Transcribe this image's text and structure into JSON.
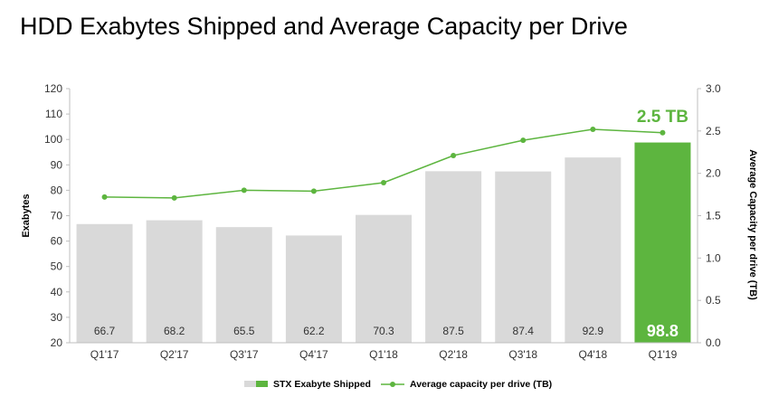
{
  "title": "HDD Exabytes Shipped and Average Capacity per Drive",
  "colors": {
    "bar": "#d9d9d9",
    "bar_highlight": "#5db53f",
    "line": "#5db53f"
  },
  "chart_data": {
    "type": "bar",
    "title": "HDD Exabytes Shipped and Average Capacity per Drive",
    "categories": [
      "Q1'17",
      "Q2'17",
      "Q3'17",
      "Q4'17",
      "Q1'18",
      "Q2'18",
      "Q3'18",
      "Q4'18",
      "Q1'19"
    ],
    "series": [
      {
        "name": "STX Exabyte Shipped",
        "type": "bar",
        "axis": "left",
        "values": [
          66.7,
          68.2,
          65.5,
          62.2,
          70.3,
          87.5,
          87.4,
          92.9,
          98.8
        ],
        "labels": [
          "66.7",
          "68.2",
          "65.5",
          "62.2",
          "70.3",
          "87.5",
          "87.4",
          "92.9",
          "98.8"
        ],
        "highlight_index": 8
      },
      {
        "name": "Average capacity per drive (TB)",
        "type": "line",
        "axis": "right",
        "values": [
          1.72,
          1.71,
          1.8,
          1.79,
          1.89,
          2.21,
          2.39,
          2.52,
          2.48
        ]
      }
    ],
    "ylabel": "Exabytes",
    "ylim": [
      20,
      120
    ],
    "yticks": [
      "20",
      "30",
      "40",
      "50",
      "60",
      "70",
      "80",
      "90",
      "100",
      "110",
      "120"
    ],
    "y2label": "Average Capacity per drive (TB)",
    "y2lim": [
      0,
      3
    ],
    "y2ticks": [
      "0.0",
      "0.5",
      "1.0",
      "1.5",
      "2.0",
      "2.5",
      "3.0"
    ],
    "callout": "2.5 TB",
    "grid": false,
    "legend_position": "bottom-center"
  }
}
